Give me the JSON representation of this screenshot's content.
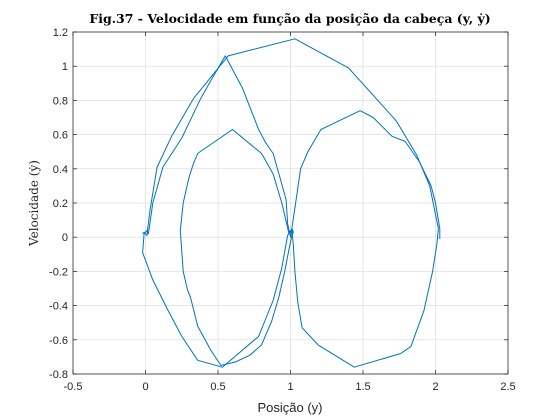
{
  "chart_data": {
    "type": "line",
    "title": "Fig.37 - Velocidade em função da posição da cabeça (y, ẏ)",
    "xlabel": "Posição (y)",
    "ylabel": "Velocidade (ẏ)",
    "xlim": [
      -0.5,
      2.5
    ],
    "ylim": [
      -0.8,
      1.2
    ],
    "xticks": [
      -0.5,
      0,
      0.5,
      1,
      1.5,
      2,
      2.5
    ],
    "xtick_labels": [
      "-0.5",
      "0",
      "0.5",
      "1",
      "1.5",
      "2",
      "2.5"
    ],
    "yticks": [
      -0.8,
      -0.6,
      -0.4,
      -0.2,
      0,
      0.2,
      0.4,
      0.6,
      0.8,
      1,
      1.2
    ],
    "ytick_labels": [
      "-0.8",
      "-0.6",
      "-0.4",
      "-0.2",
      "0",
      "0.2",
      "0.4",
      "0.6",
      "0.8",
      "1",
      "1.2"
    ],
    "grid": true,
    "color": "#0072BD",
    "series": [
      {
        "x": [
          -0.02,
          -0.01,
          0.01,
          0.03,
          0.08,
          0.18,
          0.33,
          0.57,
          1.03,
          1.4,
          1.73,
          1.87,
          1.96,
          2.02,
          2.01,
          1.98,
          1.92,
          1.83,
          1.76,
          1.44,
          1.19,
          1.08,
          1.05,
          1.03,
          1.02,
          1.01,
          0.99,
          0.94,
          0.88,
          0.8,
          0.6,
          0.36,
          0.33,
          0.3,
          0.26,
          0.24,
          0.26,
          0.29,
          0.31,
          0.36,
          0.45,
          0.52,
          0.62,
          0.72,
          0.8,
          0.87,
          0.92,
          0.96,
          0.99,
          1.01,
          1.02
        ],
        "y": [
          0.02,
          0.03,
          0.01,
          0.15,
          0.41,
          0.59,
          0.81,
          1.06,
          1.16,
          0.99,
          0.68,
          0.48,
          0.3,
          0.05,
          -0.04,
          -0.2,
          -0.43,
          -0.64,
          -0.68,
          -0.76,
          -0.63,
          -0.53,
          -0.38,
          -0.2,
          -0.05,
          0.04,
          0.02,
          0.2,
          0.37,
          0.49,
          0.63,
          0.49,
          0.43,
          0.35,
          0.2,
          0.04,
          -0.2,
          -0.31,
          -0.35,
          -0.52,
          -0.66,
          -0.75,
          -0.73,
          -0.69,
          -0.63,
          -0.49,
          -0.35,
          -0.2,
          -0.07,
          0.01,
          0.03
        ]
      },
      {
        "x": [
          1.02,
          1.01,
          0.98,
          0.94,
          0.88,
          0.78,
          0.53,
          0.36,
          0.25,
          0.15,
          0.05,
          -0.02,
          -0.01,
          0.01,
          0.02,
          0.05,
          0.12,
          0.25,
          0.38,
          0.46,
          0.55,
          0.67,
          0.78,
          0.83,
          0.88,
          0.93,
          0.97,
          0.98,
          1.0,
          1.03,
          1.07,
          1.12,
          1.21,
          1.48,
          1.57,
          1.7,
          1.79,
          1.89,
          1.97,
          2.0,
          2.03,
          2.03
        ],
        "y": [
          0.03,
          0.05,
          0.01,
          -0.18,
          -0.37,
          -0.58,
          -0.76,
          -0.72,
          -0.58,
          -0.42,
          -0.25,
          -0.09,
          0.02,
          0.04,
          0.02,
          0.2,
          0.41,
          0.58,
          0.81,
          0.93,
          1.06,
          0.87,
          0.63,
          0.55,
          0.49,
          0.34,
          0.22,
          0.08,
          0.0,
          0.17,
          0.4,
          0.5,
          0.63,
          0.74,
          0.7,
          0.59,
          0.56,
          0.44,
          0.3,
          0.2,
          0.05,
          -0.01
        ]
      }
    ]
  }
}
